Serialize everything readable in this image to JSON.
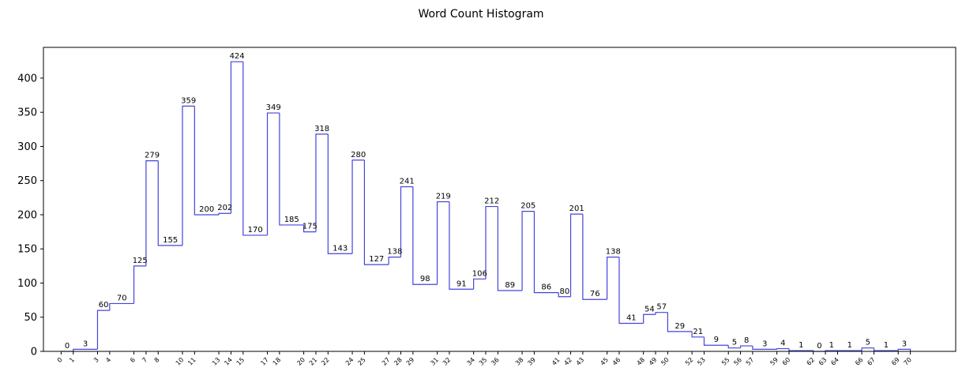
{
  "chart_data": {
    "type": "bar",
    "style": "step-histogram",
    "title": "Word Count Histogram",
    "xlabel": "",
    "ylabel": "",
    "ylim": [
      0,
      445
    ],
    "yticks": [
      0,
      50,
      100,
      150,
      200,
      250,
      300,
      350,
      400
    ],
    "grid": false,
    "line_color": "#4444dd",
    "bin_edges": [
      0,
      1,
      3,
      4,
      6,
      7,
      8,
      10,
      11,
      13,
      14,
      15,
      17,
      18,
      20,
      21,
      22,
      24,
      25,
      27,
      28,
      29,
      31,
      32,
      34,
      35,
      36,
      38,
      39,
      41,
      42,
      43,
      45,
      46,
      48,
      49,
      50,
      52,
      53,
      55,
      56,
      57,
      59,
      60,
      62,
      63,
      64,
      66,
      67,
      69,
      70
    ],
    "values": [
      0,
      3,
      60,
      70,
      125,
      279,
      155,
      359,
      200,
      202,
      424,
      170,
      349,
      185,
      175,
      318,
      143,
      280,
      127,
      138,
      241,
      98,
      219,
      91,
      106,
      212,
      89,
      205,
      86,
      80,
      201,
      76,
      138,
      41,
      54,
      57,
      29,
      21,
      9,
      5,
      8,
      3,
      4,
      1,
      0,
      1,
      1,
      5,
      1,
      3
    ]
  }
}
